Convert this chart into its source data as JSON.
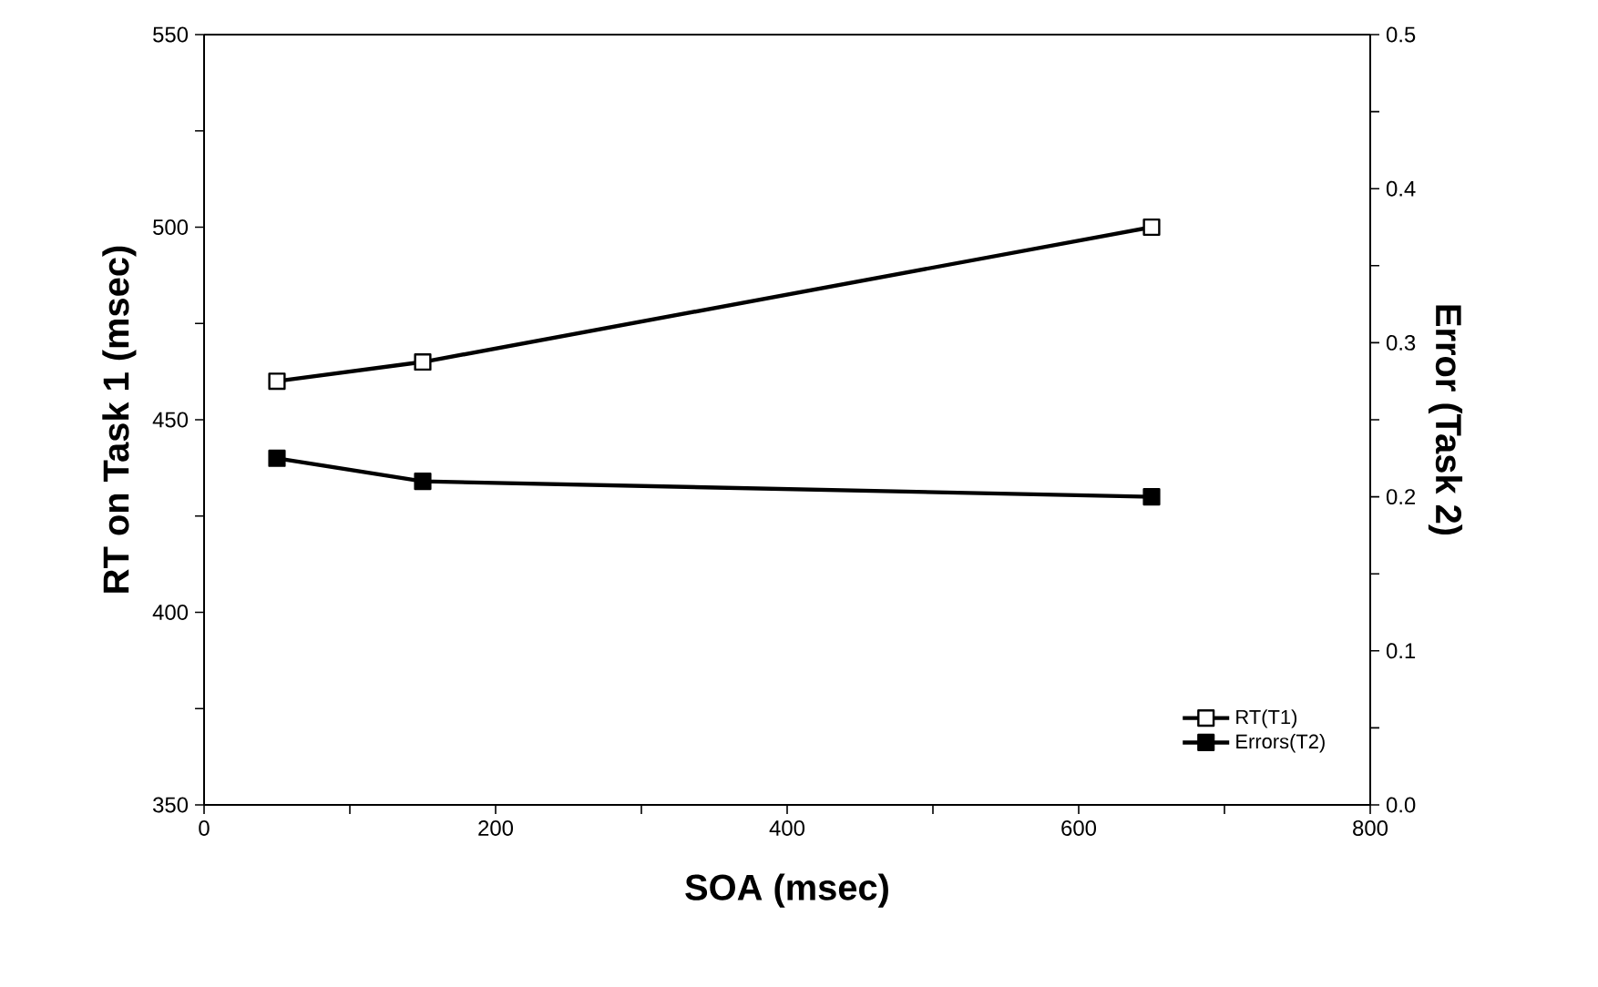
{
  "chart_data": {
    "type": "line",
    "xlabel": "SOA (msec)",
    "ylabel": "RT on Task 1 (msec)",
    "y2label": "Error (Task 2)",
    "x": [
      50,
      150,
      650
    ],
    "series": [
      {
        "name": "RT(T1)",
        "color": "#000000",
        "values": [
          460,
          465,
          500
        ]
      },
      {
        "name": "Errors(T2)",
        "color": "#000000",
        "axis": "y2",
        "values": [
          0.225,
          0.21,
          0.2
        ]
      }
    ],
    "xlim": [
      0,
      800
    ],
    "xticks": [
      0,
      {
        "value": 100,
        "label": null
      },
      200,
      {
        "value": 300,
        "label": null
      },
      400,
      {
        "value": 500,
        "label": null
      },
      600,
      {
        "value": 700,
        "label": null
      },
      800
    ],
    "ylim": [
      350,
      550
    ],
    "yticks": [
      350,
      {
        "value": 375,
        "label": null
      },
      400,
      {
        "value": 425,
        "label": null
      },
      450,
      {
        "value": 475,
        "label": null
      },
      500,
      {
        "value": 525,
        "label": null
      },
      550
    ],
    "y2lim": [
      0,
      0.5
    ],
    "y2ticks": [
      {
        "value": 0,
        "label": "0.0"
      },
      {
        "value": 0.05,
        "label": null
      },
      {
        "value": 0.1,
        "label": "0.1"
      },
      {
        "value": 0.15,
        "label": null
      },
      {
        "value": 0.2,
        "label": "0.2"
      },
      {
        "value": 0.25,
        "label": null
      },
      {
        "value": 0.3,
        "label": "0.3"
      },
      {
        "value": 0.35,
        "label": null
      },
      {
        "value": 0.4,
        "label": "0.4"
      },
      {
        "value": 0.45,
        "label": null
      },
      {
        "value": 0.5,
        "label": "0.5"
      }
    ],
    "marker": "square",
    "line_style": "solid",
    "grid": false,
    "legend": "bottom right"
  }
}
